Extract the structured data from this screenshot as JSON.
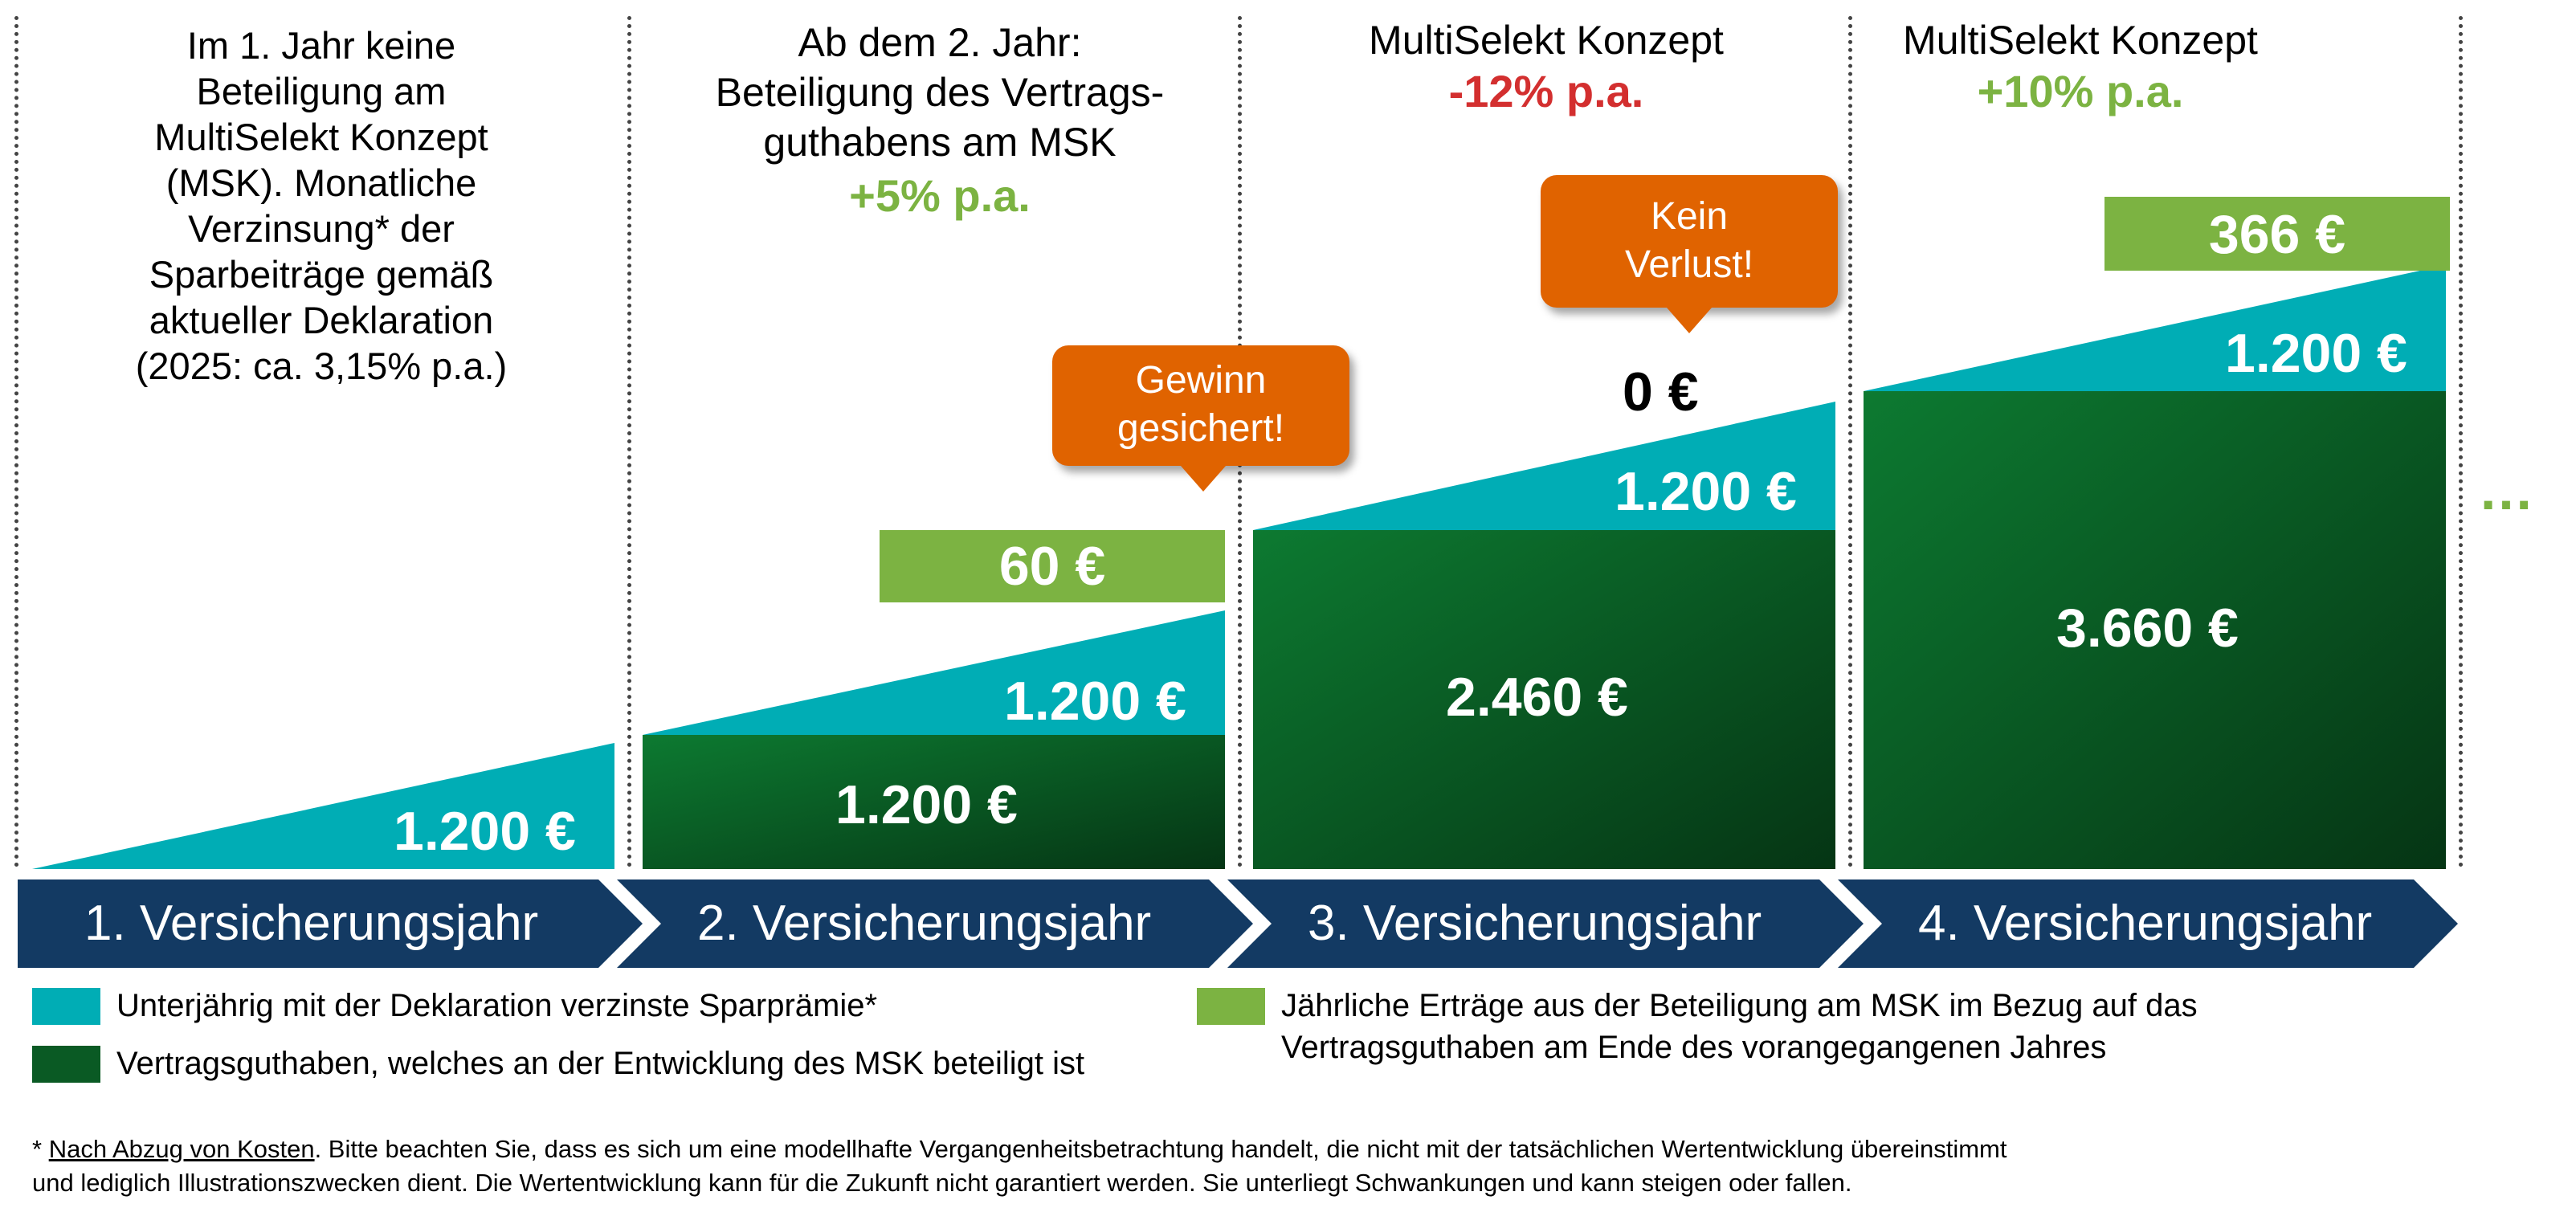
{
  "columns": [
    {
      "text_lines": [
        "Im 1. Jahr keine",
        "Beteiligung am",
        "MultiSelekt Konzept",
        "(MSK). Monatliche",
        "Verzinsung* der",
        "Sparbeiträge gemäß",
        "aktueller Deklaration",
        "(2025: ca. 3,15% p.a.)"
      ]
    },
    {
      "text_lines": [
        "Ab dem 2. Jahr:",
        "Beteiligung des Vertrags-",
        "guthabens am MSK"
      ],
      "rate": "+5% p.a."
    },
    {
      "text_lines": [
        "MultiSelekt Konzept"
      ],
      "rate": "-12% p.a."
    },
    {
      "text_lines": [
        "MultiSelekt Konzept"
      ],
      "rate": "+10% p.a."
    }
  ],
  "values": {
    "y1_teal": "1.200 €",
    "y2_green_base": "1.200 €",
    "y2_teal": "1.200 €",
    "y2_gain": "60 €",
    "y3_green_base": "2.460 €",
    "y3_teal": "1.200 €",
    "y3_gain": "0 €",
    "y4_green_base": "3.660 €",
    "y4_teal": "1.200 €",
    "y4_gain": "366 €"
  },
  "callouts": {
    "gain_secured_line1": "Gewinn",
    "gain_secured_line2": "gesichert!",
    "no_loss_line1": "Kein",
    "no_loss_line2": "Verlust!"
  },
  "continuation": "…",
  "years": [
    "1. Versicherungsjahr",
    "2. Versicherungsjahr",
    "3. Versicherungsjahr",
    "4. Versicherungsjahr"
  ],
  "legend": {
    "teal": "Unterjährig mit der Deklaration verzinste Sparprämie*",
    "darkgreen": "Vertragsguthaben, welches an der Entwicklung des MSK beteiligt ist",
    "lightgreen_line1": "Jährliche Erträge aus der Beteiligung am MSK im Bezug auf das",
    "lightgreen_line2": "Vertragsguthaben am Ende des vorangegangenen Jahres"
  },
  "footnote": {
    "underlined": "Nach Abzug von Kosten",
    "line1_rest": ". Bitte beachten Sie, dass es sich um eine modellhafte Vergangenheitsbetrachtung handelt, die nicht mit der tatsächlichen Wertentwicklung übereinstimmt",
    "line2": "und lediglich Illustrationszwecken dient. Die Wertentwicklung kann für die Zukunft nicht garantiert werden. Sie unterliegt Schwankungen und kann steigen oder fallen."
  },
  "colors": {
    "teal": "#00adb5",
    "dark_green_top": "#0a6e2c",
    "dark_green_bottom": "#063b16",
    "light_green": "#7cb342",
    "orange": "#e06300",
    "navy": "#133a63",
    "red": "#d32f2f"
  }
}
